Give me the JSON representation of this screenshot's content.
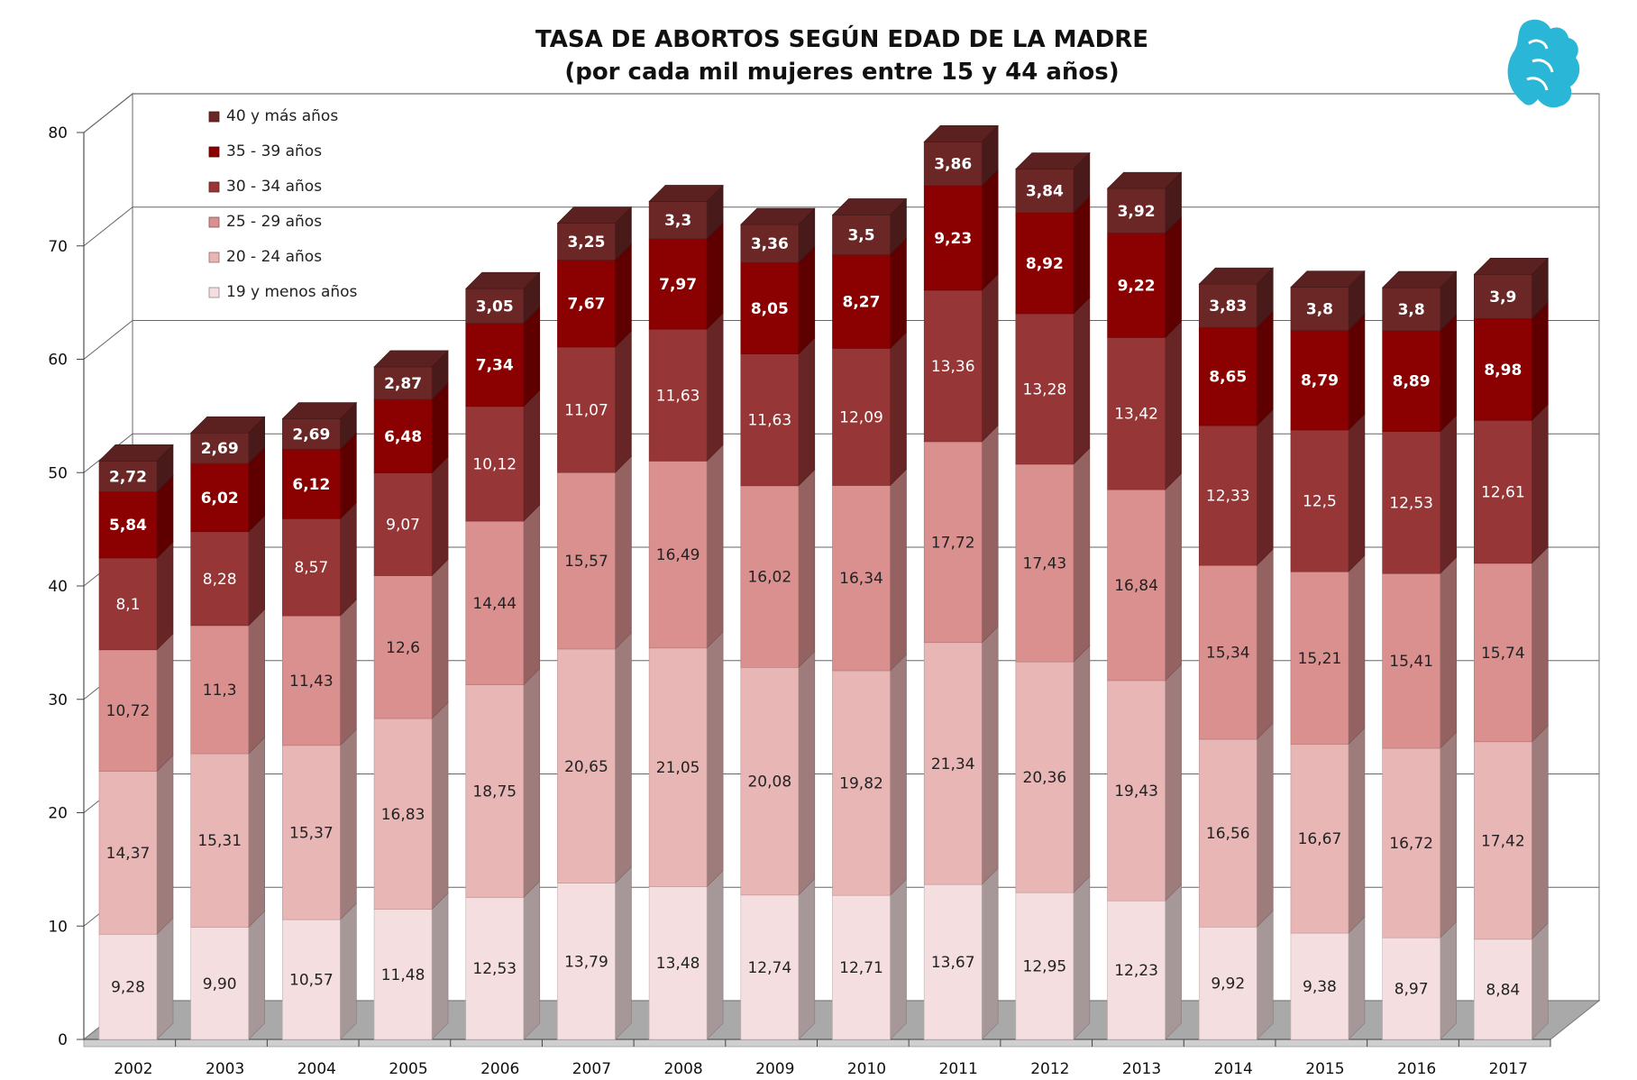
{
  "chart_data": {
    "type": "bar",
    "stacked": true,
    "title": "TASA DE ABORTOS SEGÚN EDAD DE LA MADRE",
    "subtitle": "(por cada mil mujeres entre 15 y 44 años)",
    "categories": [
      "2002",
      "2003",
      "2004",
      "2005",
      "2006",
      "2007",
      "2008",
      "2009",
      "2010",
      "2011",
      "2012",
      "2013",
      "2014",
      "2015",
      "2016",
      "2017"
    ],
    "ylim": [
      0,
      80
    ],
    "yticks": [
      "0",
      "10",
      "20",
      "30",
      "40",
      "50",
      "60",
      "70",
      "80"
    ],
    "grid": true,
    "legend": "top-left",
    "series": [
      {
        "name": "19 y menos años",
        "color": "#f4dedf",
        "values": [
          9.28,
          9.9,
          10.57,
          11.48,
          12.53,
          13.79,
          13.48,
          12.74,
          12.71,
          13.67,
          12.95,
          12.23,
          9.92,
          9.38,
          8.97,
          8.84
        ],
        "labels": [
          "9,28",
          "9,90",
          "10,57",
          "11,48",
          "12,53",
          "13,79",
          "13,48",
          "12,74",
          "12,71",
          "13,67",
          "12,95",
          "12,23",
          "9,92",
          "9,38",
          "8,97",
          "8,84"
        ]
      },
      {
        "name": "20 - 24 años",
        "color": "#e9b6b6",
        "values": [
          14.37,
          15.31,
          15.37,
          16.83,
          18.75,
          20.65,
          21.05,
          20.08,
          19.82,
          21.34,
          20.36,
          19.43,
          16.56,
          16.67,
          16.72,
          17.42
        ],
        "labels": [
          "14,37",
          "15,31",
          "15,37",
          "16,83",
          "18,75",
          "20,65",
          "21,05",
          "20,08",
          "19,82",
          "21,34",
          "20,36",
          "19,43",
          "16,56",
          "16,67",
          "16,72",
          "17,42"
        ]
      },
      {
        "name": "25 - 29 años",
        "color": "#db9090",
        "values": [
          10.72,
          11.3,
          11.43,
          12.6,
          14.44,
          15.57,
          16.49,
          16.02,
          16.34,
          17.72,
          17.43,
          16.84,
          15.34,
          15.21,
          15.41,
          15.74
        ],
        "labels": [
          "10,72",
          "11,3",
          "11,43",
          "12,6",
          "14,44",
          "15,57",
          "16,49",
          "16,02",
          "16,34",
          "17,72",
          "17,43",
          "16,84",
          "15,34",
          "15,21",
          "15,41",
          "15,74"
        ]
      },
      {
        "name": "30 - 34 años",
        "color": "#973636",
        "values": [
          8.1,
          8.28,
          8.57,
          9.07,
          10.12,
          11.07,
          11.63,
          11.63,
          12.09,
          13.36,
          13.28,
          13.42,
          12.33,
          12.5,
          12.53,
          12.61
        ],
        "labels": [
          "8,1",
          "8,28",
          "8,57",
          "9,07",
          "10,12",
          "11,07",
          "11,63",
          "11,63",
          "12,09",
          "13,36",
          "13,28",
          "13,42",
          "12,33",
          "12,5",
          "12,53",
          "12,61"
        ]
      },
      {
        "name": "35 - 39 años",
        "color": "#8b0000",
        "values": [
          5.84,
          6.02,
          6.12,
          6.48,
          7.34,
          7.67,
          7.97,
          8.05,
          8.27,
          9.23,
          8.92,
          9.22,
          8.65,
          8.79,
          8.89,
          8.98
        ],
        "labels": [
          "5,84",
          "6,02",
          "6,12",
          "6,48",
          "7,34",
          "7,67",
          "7,97",
          "8,05",
          "8,27",
          "9,23",
          "8,92",
          "9,22",
          "8,65",
          "8,79",
          "8,89",
          "8,98"
        ]
      },
      {
        "name": "40 y más años",
        "color": "#6b2626",
        "values": [
          2.72,
          2.69,
          2.69,
          2.87,
          3.05,
          3.25,
          3.3,
          3.36,
          3.5,
          3.86,
          3.84,
          3.92,
          3.83,
          3.8,
          3.8,
          3.9
        ],
        "labels": [
          "2,72",
          "2,69",
          "2,69",
          "2,87",
          "3,05",
          "3,25",
          "3,3",
          "3,36",
          "3,5",
          "3,86",
          "3,84",
          "3,92",
          "3,83",
          "3,8",
          "3,8",
          "3,9"
        ]
      }
    ]
  },
  "logo": {
    "icon": "griffin-logo-icon",
    "color": "#29b6d8"
  }
}
